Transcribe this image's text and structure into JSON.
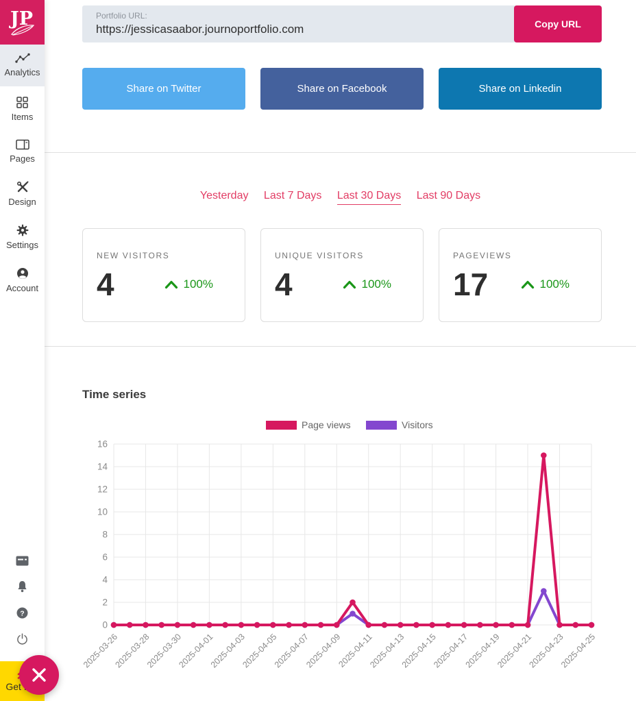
{
  "sidebar": {
    "logo_text": "JP",
    "nav": [
      {
        "label": "Analytics",
        "icon": "analytics-icon",
        "active": true
      },
      {
        "label": "Items",
        "icon": "items-icon",
        "active": false
      },
      {
        "label": "Pages",
        "icon": "pages-icon",
        "active": false
      },
      {
        "label": "Design",
        "icon": "design-icon",
        "active": false
      },
      {
        "label": "Settings",
        "icon": "settings-icon",
        "active": false
      },
      {
        "label": "Account",
        "icon": "account-icon",
        "active": false
      }
    ],
    "footer_icons": [
      "card-icon",
      "bell-icon",
      "help-icon",
      "power-icon"
    ],
    "get_pro_label": "Get Pro"
  },
  "header": {
    "portfolio_url_label": "Portfolio URL:",
    "portfolio_url": "https://jessicasaabor.journoportfolio.com",
    "copy_button_label": "Copy URL"
  },
  "share_buttons": [
    {
      "label": "Share on Twitter",
      "color": "#55acee"
    },
    {
      "label": "Share on Facebook",
      "color": "#44619d"
    },
    {
      "label": "Share on Linkedin",
      "color": "#0d77b0"
    }
  ],
  "filters": {
    "options": [
      "Yesterday",
      "Last 7 Days",
      "Last 30 Days",
      "Last 90 Days"
    ],
    "selected": "Last 30 Days"
  },
  "stats": [
    {
      "label": "NEW VISITORS",
      "value": "4",
      "change": "100%",
      "direction": "up"
    },
    {
      "label": "UNIQUE VISITORS",
      "value": "4",
      "change": "100%",
      "direction": "up"
    },
    {
      "label": "PAGEVIEWS",
      "value": "17",
      "change": "100%",
      "direction": "up"
    }
  ],
  "chart_section_title": "Time series",
  "chart_data": {
    "type": "line",
    "title": "Time series",
    "x": [
      "2025-03-26",
      "2025-03-27",
      "2025-03-28",
      "2025-03-29",
      "2025-03-30",
      "2025-03-31",
      "2025-04-01",
      "2025-04-02",
      "2025-04-03",
      "2025-04-04",
      "2025-04-05",
      "2025-04-06",
      "2025-04-07",
      "2025-04-08",
      "2025-04-09",
      "2025-04-10",
      "2025-04-11",
      "2025-04-12",
      "2025-04-13",
      "2025-04-14",
      "2025-04-15",
      "2025-04-16",
      "2025-04-17",
      "2025-04-18",
      "2025-04-19",
      "2025-04-20",
      "2025-04-21",
      "2025-04-22",
      "2025-04-23",
      "2025-04-24",
      "2025-04-25"
    ],
    "series": [
      {
        "name": "Page views",
        "color": "#d6185f",
        "values": [
          0,
          0,
          0,
          0,
          0,
          0,
          0,
          0,
          0,
          0,
          0,
          0,
          0,
          0,
          0,
          2,
          0,
          0,
          0,
          0,
          0,
          0,
          0,
          0,
          0,
          0,
          0,
          15,
          0,
          0,
          0
        ]
      },
      {
        "name": "Visitors",
        "color": "#8347cf",
        "values": [
          0,
          0,
          0,
          0,
          0,
          0,
          0,
          0,
          0,
          0,
          0,
          0,
          0,
          0,
          0,
          1,
          0,
          0,
          0,
          0,
          0,
          0,
          0,
          0,
          0,
          0,
          0,
          3,
          0,
          0,
          0
        ]
      }
    ],
    "ylim": [
      0,
      16
    ],
    "ytick_step": 2,
    "x_label_every": 2,
    "grid": true,
    "legend_position": "top"
  },
  "colors": {
    "brand_pink": "#d6185f",
    "accent_tab_pink": "#e23c64",
    "positive_green": "#1a9618",
    "get_pro_yellow": "#ffd800",
    "url_bar_bg": "#e3e8ee",
    "active_nav_bg": "#e8ebf0"
  }
}
